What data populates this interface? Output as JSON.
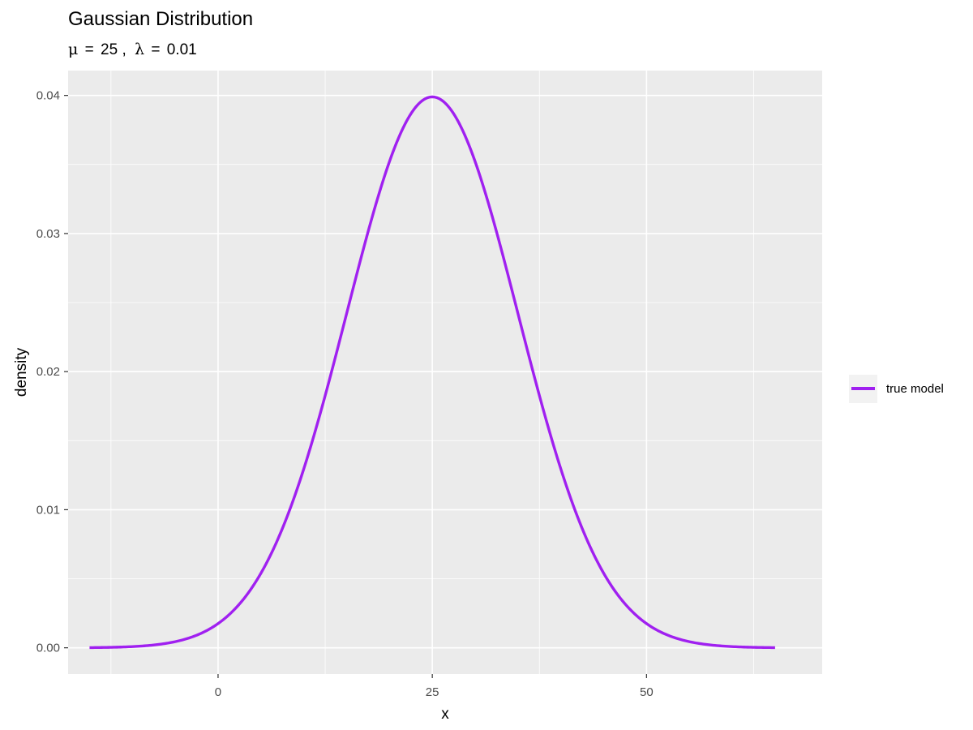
{
  "chart_data": {
    "type": "line",
    "title": "Gaussian Distribution",
    "subtitle": {
      "mu_symbol": "μ",
      "mu_value": "25",
      "lambda_symbol": "λ",
      "lambda_value": "0.01"
    },
    "xlabel": "x",
    "ylabel": "density",
    "xlim": [
      -17.5,
      70.5
    ],
    "ylim": [
      -0.0019,
      0.0418
    ],
    "x_ticks": [
      0,
      25,
      50
    ],
    "x_tick_labels": [
      "0",
      "25",
      "50"
    ],
    "y_ticks": [
      0.0,
      0.01,
      0.02,
      0.03,
      0.04
    ],
    "y_tick_labels": [
      "0.00",
      "0.01",
      "0.02",
      "0.03",
      "0.04"
    ],
    "x_minor_gridlines": [
      -12.5,
      12.5,
      37.5,
      62.5
    ],
    "y_minor_gridlines": [
      0.005,
      0.015,
      0.025,
      0.035
    ],
    "grid": true,
    "legend_position": "right",
    "series": [
      {
        "name": "true model",
        "color": "#A020F0",
        "distribution": "normal",
        "mean": 25,
        "sd": 10,
        "x": [
          -15,
          -12.5,
          -10,
          -7.5,
          -5,
          -2.5,
          0,
          2.5,
          5,
          7.5,
          10,
          12.5,
          15,
          17.5,
          20,
          22.5,
          25,
          27.5,
          30,
          32.5,
          35,
          37.5,
          40,
          42.5,
          45,
          47.5,
          50,
          52.5,
          55,
          57.5,
          60,
          62.5,
          65
        ],
        "y": [
          1.3e-05,
          3.6e-05,
          8.7e-05,
          0.000199,
          0.000443,
          0.000909,
          0.001753,
          0.003174,
          0.005399,
          0.008628,
          0.012952,
          0.018265,
          0.024197,
          0.030114,
          0.035207,
          0.038667,
          0.039894,
          0.038667,
          0.035207,
          0.030114,
          0.024197,
          0.018265,
          0.012952,
          0.008628,
          0.005399,
          0.003174,
          0.001753,
          0.000909,
          0.000443,
          0.000199,
          8.7e-05,
          3.6e-05,
          1.3e-05
        ]
      }
    ]
  }
}
